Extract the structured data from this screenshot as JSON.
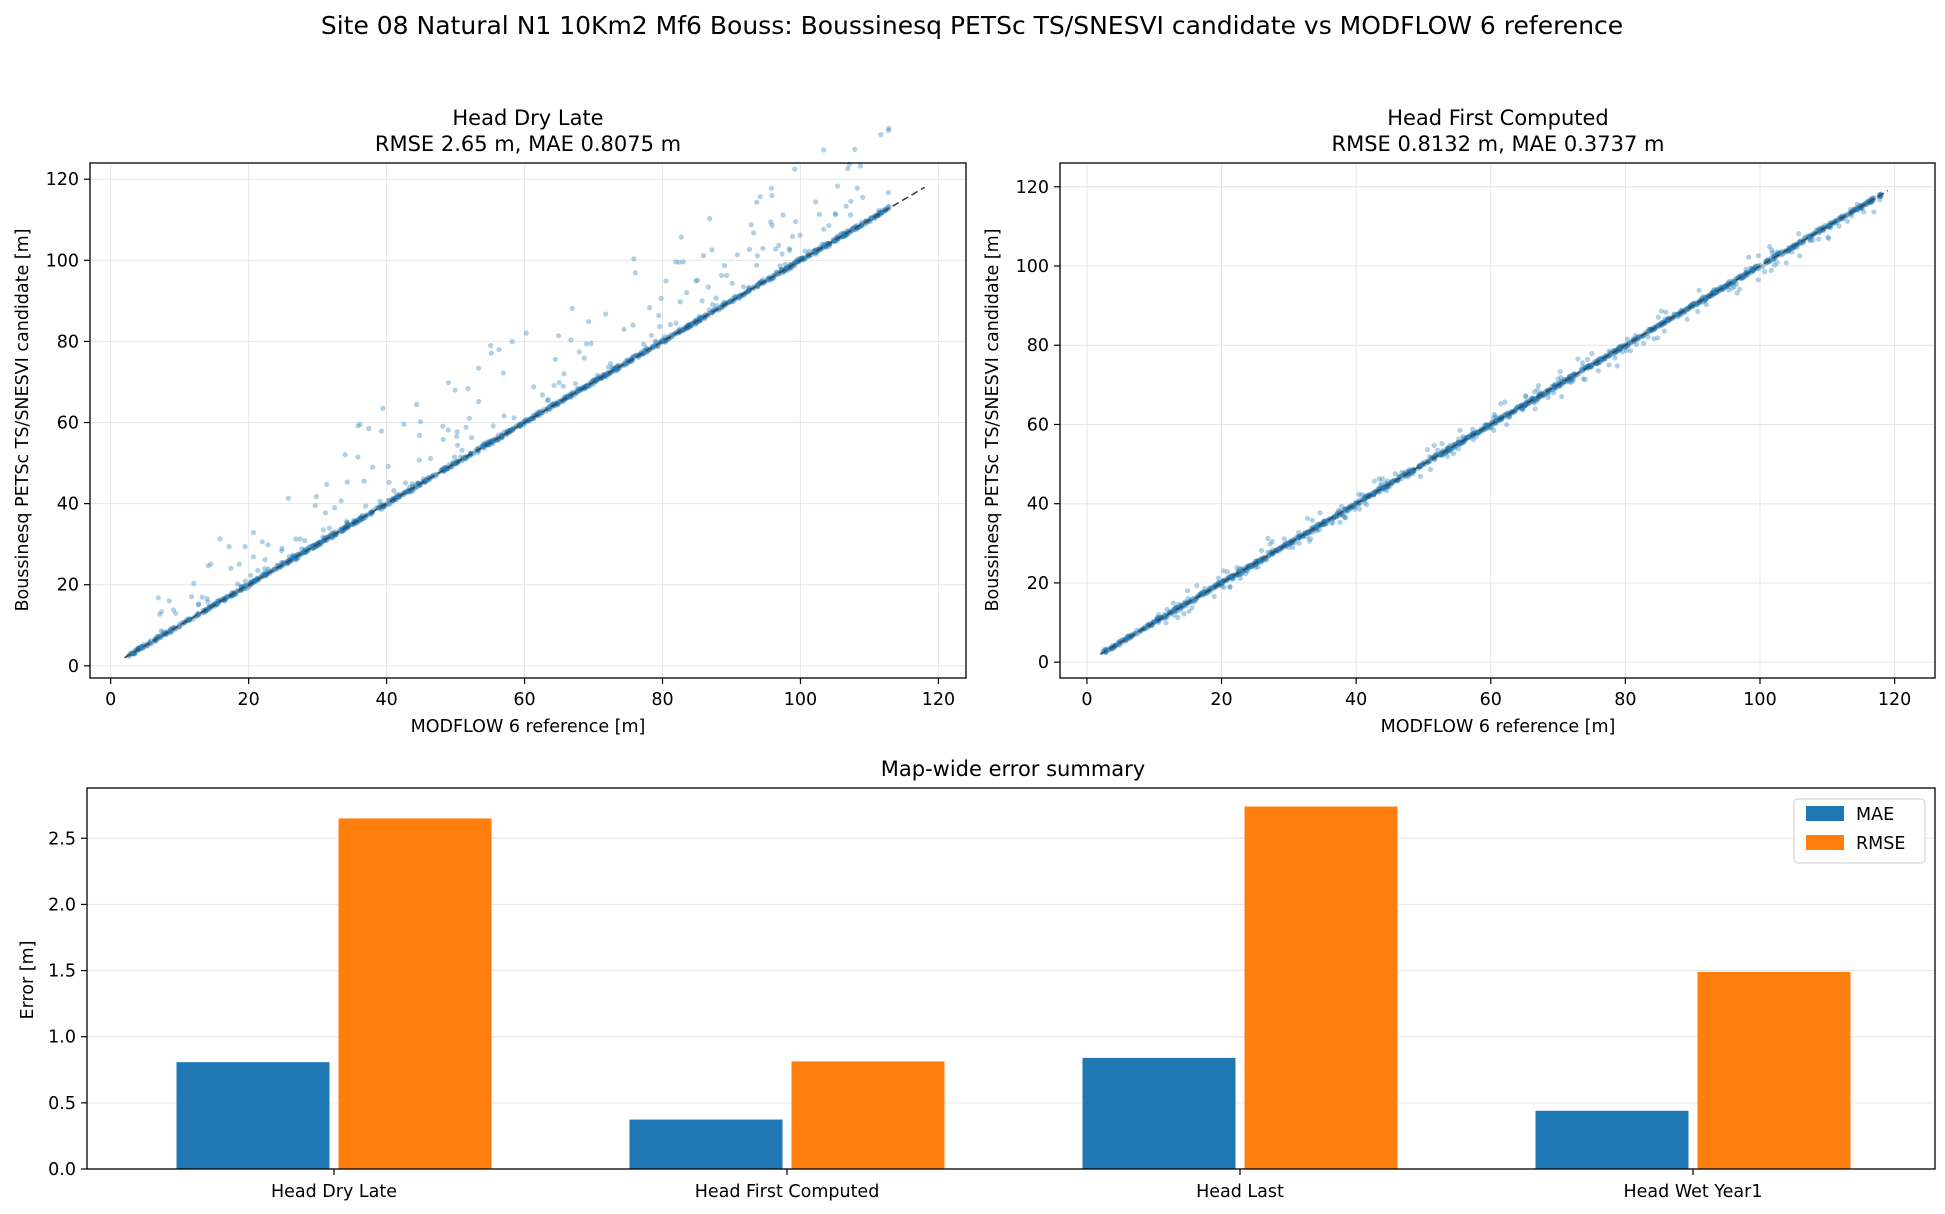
{
  "suptitle": "Site 08 Natural N1 10Km2 Mf6 Bouss: Boussinesq PETSc TS/SNESVI candidate vs MODFLOW 6 reference",
  "chart_data": [
    {
      "type": "scatter",
      "title_line1": "Head Dry Late",
      "title_line2": "RMSE 2.65 m, MAE 0.8075 m",
      "xlabel": "MODFLOW 6 reference [m]",
      "ylabel": "Boussinesq PETSc TS/SNESVI candidate [m]",
      "xlim": [
        -3,
        124
      ],
      "ylim": [
        -3,
        124
      ],
      "xticks": [
        0,
        20,
        40,
        60,
        80,
        100,
        120
      ],
      "yticks": [
        0,
        20,
        40,
        60,
        80,
        100,
        120
      ],
      "grid": true,
      "identity_line": [
        2,
        118
      ],
      "point_color": "#1f77b4",
      "points": {
        "range": [
          2.5,
          113
        ],
        "on_line_count": 1400,
        "above_line_count": 260,
        "above_line_spread_m": [
          0.5,
          25
        ]
      }
    },
    {
      "type": "scatter",
      "title_line1": "Head First Computed",
      "title_line2": "RMSE 0.8132 m, MAE 0.3737 m",
      "xlabel": "MODFLOW 6 reference [m]",
      "ylabel": "Boussinesq PETSc TS/SNESVI candidate [m]",
      "xlim": [
        -4,
        126
      ],
      "ylim": [
        -4,
        126
      ],
      "xticks": [
        0,
        20,
        40,
        60,
        80,
        100,
        120
      ],
      "yticks": [
        0,
        20,
        40,
        60,
        80,
        100,
        120
      ],
      "grid": true,
      "identity_line": [
        2,
        119
      ],
      "point_color": "#1f77b4",
      "points": {
        "range": [
          2,
          118
        ],
        "on_line_count": 1500,
        "scatter_count": 300,
        "scatter_spread_m": [
          -4,
          8
        ]
      }
    },
    {
      "type": "bar",
      "title": "Map-wide error summary",
      "ylabel": "Error [m]",
      "categories": [
        "Head Dry Late",
        "Head First Computed",
        "Head Last",
        "Head Wet Year1"
      ],
      "series": [
        {
          "name": "MAE",
          "color": "#1f77b4",
          "values": [
            0.8075,
            0.3737,
            0.84,
            0.44
          ]
        },
        {
          "name": "RMSE",
          "color": "#ff7f0e",
          "values": [
            2.65,
            0.8132,
            2.74,
            1.49
          ]
        }
      ],
      "ylim": [
        0,
        2.88
      ],
      "yticks": [
        "0.0",
        "0.5",
        "1.0",
        "1.5",
        "2.0",
        "2.5"
      ],
      "grid": true,
      "legend": "top-right"
    }
  ]
}
